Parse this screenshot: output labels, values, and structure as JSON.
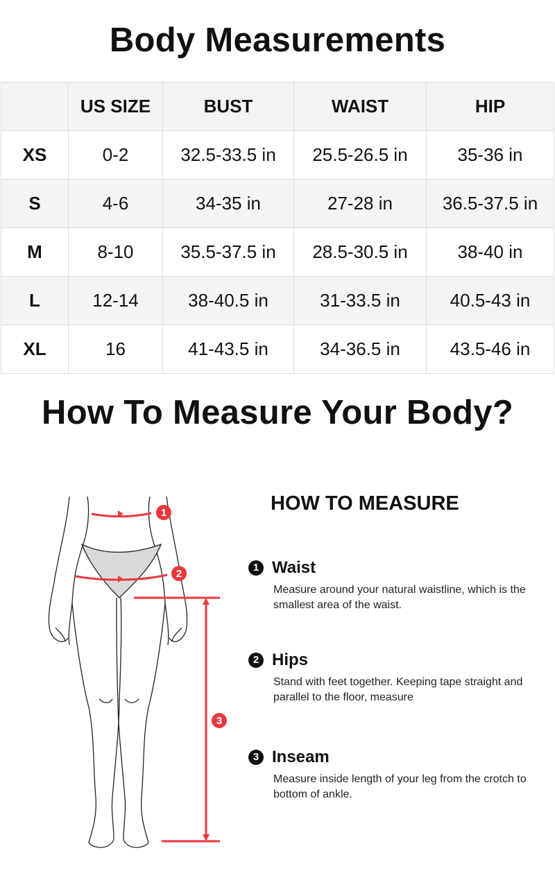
{
  "title": "Body Measurements",
  "table": {
    "headers": [
      "",
      "US SIZE",
      "BUST",
      "WAIST",
      "HIP"
    ],
    "rows": [
      [
        "XS",
        "0-2",
        "32.5-33.5 in",
        "25.5-26.5 in",
        "35-36 in"
      ],
      [
        "S",
        "4-6",
        "34-35 in",
        "27-28 in",
        "36.5-37.5 in"
      ],
      [
        "M",
        "8-10",
        "35.5-37.5 in",
        "28.5-30.5 in",
        "38-40 in"
      ],
      [
        "L",
        "12-14",
        "38-40.5 in",
        "31-33.5 in",
        "40.5-43 in"
      ],
      [
        "XL",
        "16",
        "41-43.5 in",
        "34-36.5 in",
        "43.5-46 in"
      ]
    ]
  },
  "subtitle": "How To Measure Your Body?",
  "figure": {
    "markers": [
      "1",
      "2",
      "3"
    ],
    "accent_color": "#e8393c"
  },
  "guide": {
    "heading": "HOW TO MEASURE",
    "items": [
      {
        "num": "1",
        "title": "Waist",
        "desc": "Measure around your natural waistline, which is the smallest area of the waist."
      },
      {
        "num": "2",
        "title": "Hips",
        "desc": "Stand with feet together. Keeping tape straight and parallel to the floor, measure"
      },
      {
        "num": "3",
        "title": "Inseam",
        "desc": "Measure inside length of your leg from the crotch to bottom of ankle."
      }
    ]
  }
}
